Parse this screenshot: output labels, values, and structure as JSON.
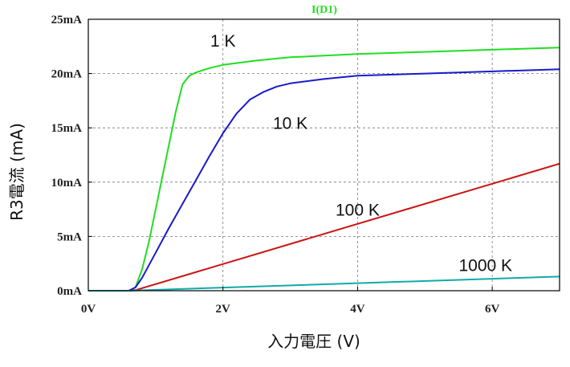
{
  "chart_data": {
    "type": "line",
    "title": "I(D1)",
    "xlabel": "入力電圧 (V)",
    "ylabel": "R3電流 (mA)",
    "xlim": [
      0,
      7
    ],
    "ylim": [
      0,
      25
    ],
    "grid": true,
    "x_ticks": [
      {
        "value": 0,
        "label": "0V"
      },
      {
        "value": 2,
        "label": "2V"
      },
      {
        "value": 4,
        "label": "4V"
      },
      {
        "value": 6,
        "label": "6V"
      }
    ],
    "y_ticks": [
      {
        "value": 0,
        "label": "0mA"
      },
      {
        "value": 5,
        "label": "5mA"
      },
      {
        "value": 10,
        "label": "10mA"
      },
      {
        "value": 15,
        "label": "15mA"
      },
      {
        "value": 20,
        "label": "20mA"
      },
      {
        "value": 25,
        "label": "25mA"
      }
    ],
    "series": [
      {
        "name": "1 K",
        "color": "#22dd22",
        "x": [
          0,
          0.6,
          0.7,
          0.8,
          0.9,
          1.0,
          1.1,
          1.2,
          1.3,
          1.4,
          1.5,
          1.6,
          1.8,
          2.0,
          2.5,
          3.0,
          4.0,
          5.0,
          6.0,
          7.0
        ],
        "y": [
          0,
          0,
          0.3,
          2.0,
          4.5,
          7.5,
          10.5,
          13.5,
          16.5,
          19.0,
          19.8,
          20.1,
          20.5,
          20.8,
          21.2,
          21.5,
          21.8,
          22.0,
          22.2,
          22.4
        ]
      },
      {
        "name": "10 K",
        "color": "#1a1acc",
        "x": [
          0,
          0.6,
          0.7,
          0.8,
          1.0,
          1.2,
          1.4,
          1.6,
          1.8,
          2.0,
          2.2,
          2.4,
          2.6,
          2.8,
          3.0,
          3.5,
          4.0,
          5.0,
          6.0,
          7.0
        ],
        "y": [
          0,
          0,
          0.3,
          1.2,
          3.5,
          5.8,
          8.0,
          10.2,
          12.4,
          14.5,
          16.3,
          17.6,
          18.3,
          18.8,
          19.1,
          19.5,
          19.8,
          20.0,
          20.2,
          20.4
        ]
      },
      {
        "name": "100 K",
        "color": "#cc1111",
        "x": [
          0,
          0.6,
          0.7,
          7.0
        ],
        "y": [
          0,
          0,
          0.05,
          11.7
        ]
      },
      {
        "name": "1000 K",
        "color": "#11aaaa",
        "x": [
          0,
          0.6,
          0.7,
          7.0
        ],
        "y": [
          0,
          0,
          0.02,
          1.3
        ]
      }
    ],
    "annotations": [
      {
        "text": "1 K",
        "x": 2.0,
        "y": 22.5
      },
      {
        "text": "10 K",
        "x": 3.0,
        "y": 14.9
      },
      {
        "text": "100 K",
        "x": 4.0,
        "y": 6.9
      },
      {
        "text": "1000 K",
        "x": 5.9,
        "y": 1.8
      }
    ]
  }
}
